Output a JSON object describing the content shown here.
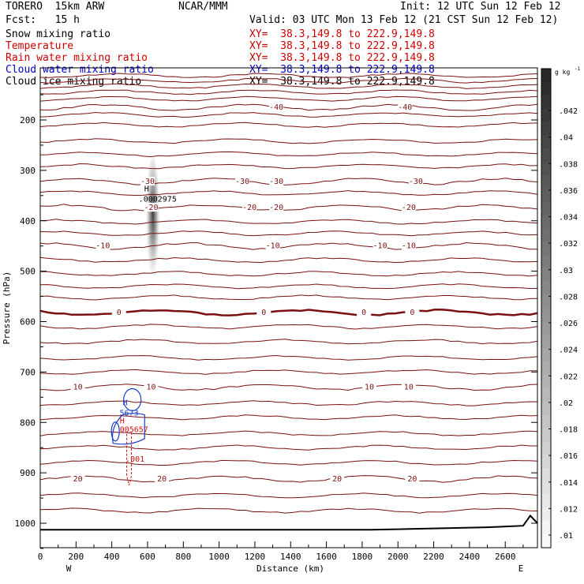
{
  "header": {
    "model": "TORERO  15km ARW",
    "center": "NCAR/MMM",
    "init": "Init: 12 UTC Sun 12 Feb 12",
    "fcst": "Fcst:   15 h",
    "valid": "Valid: 03 UTC Mon 13 Feb 12 (21 CST Sun 12 Feb 12)"
  },
  "fields": [
    {
      "name": "Snow mixing ratio",
      "xy": "XY=  38.3,149.8 to 222.9,149.8",
      "color": "#000000",
      "xycolor": "#cc0000"
    },
    {
      "name": "Temperature",
      "xy": "XY=  38.3,149.8 to 222.9,149.8",
      "color": "#cc0000",
      "xycolor": "#cc0000"
    },
    {
      "name": "Rain water mixing ratio",
      "xy": "XY=  38.3,149.8 to 222.9,149.8",
      "color": "#cc0000",
      "xycolor": "#cc0000"
    },
    {
      "name": "Cloud water mixing ratio",
      "xy": "XY=  38.3,149.8 to 222.9,149.8",
      "color": "#0000cc",
      "xycolor": "#0000cc"
    },
    {
      "name": "Cloud ice mixing ratio",
      "xy": "XY=  38.3,149.8 to 222.9,149.8",
      "color": "#000000",
      "xycolor": "#000000"
    }
  ],
  "chart_data": {
    "type": "contour",
    "xlabel": "Distance (km)",
    "ylabel": "Pressure (hPa)",
    "xlim": [
      0,
      2780
    ],
    "ylim": [
      1050,
      100
    ],
    "x_ticks": [
      0,
      200,
      400,
      600,
      800,
      1000,
      1200,
      1400,
      1600,
      1800,
      2000,
      2200,
      2400,
      2600
    ],
    "y_ticks": [
      200,
      300,
      400,
      500,
      600,
      700,
      800,
      900,
      1000
    ],
    "x_end_labels": {
      "left": "W",
      "right": "E"
    },
    "colorbar": {
      "unit": "g kg",
      "unit_exp": "-1",
      "ticks": [
        ".01",
        ".012",
        ".014",
        ".016",
        ".018",
        ".02",
        ".022",
        ".024",
        ".026",
        ".028",
        ".03",
        ".032",
        ".034",
        ".036",
        ".038",
        ".04",
        ".042"
      ]
    },
    "temperature_isotherms": [
      {
        "label": "-40",
        "p": 175,
        "labels_at_x": [
          1320,
          2040
        ]
      },
      {
        "label": "-30",
        "p": 322,
        "labels_at_x": [
          600,
          1130,
          1320,
          2100
        ]
      },
      {
        "label": "-20",
        "p": 374,
        "labels_at_x": [
          620,
          1170,
          1320,
          2060
        ]
      },
      {
        "label": "-10",
        "p": 450,
        "labels_at_x": [
          350,
          1300,
          1900,
          2060
        ]
      },
      {
        "label": "0",
        "p": 582,
        "labels_at_x": [
          440,
          1250,
          1810,
          2080
        ]
      },
      {
        "label": "10",
        "p": 730,
        "labels_at_x": [
          210,
          620,
          1840,
          2060
        ]
      },
      {
        "label": "20",
        "p": 912,
        "labels_at_x": [
          210,
          680,
          1660,
          2080
        ]
      }
    ],
    "cloud_ice_max": {
      "label": "H",
      "value": ".0002975",
      "x": 630,
      "p": 345
    },
    "cloud_water_max": {
      "label": "H",
      "value": "5673",
      "x": 510,
      "p": 760
    },
    "rain_water_max": {
      "label": "H",
      "value": "005657",
      "x": 480,
      "p": 805
    },
    "rain_water_contour": ".001",
    "terrain_line": "surface ~1013 hPa"
  }
}
